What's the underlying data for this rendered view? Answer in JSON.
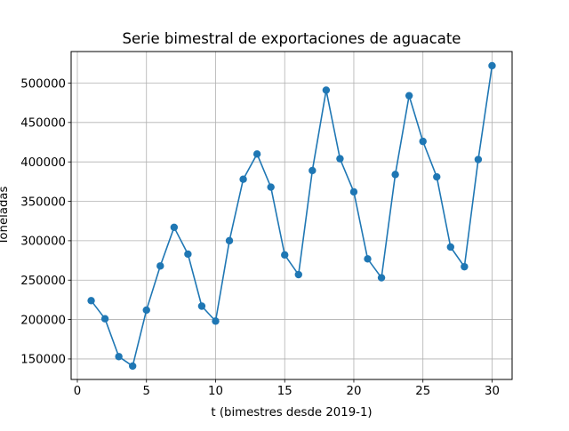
{
  "chart_data": {
    "type": "line",
    "title": "Serie bimestral de exportaciones de aguacate",
    "xlabel": "t (bimestres desde 2019-1)",
    "ylabel": "Toneladas",
    "xlim": [
      -0.45,
      31.45
    ],
    "ylim": [
      124000,
      540000
    ],
    "xticks": [
      0,
      5,
      10,
      15,
      20,
      25,
      30
    ],
    "xtick_labels": [
      "0",
      "5",
      "10",
      "15",
      "20",
      "25",
      "30"
    ],
    "yticks": [
      150000,
      200000,
      250000,
      300000,
      350000,
      400000,
      450000,
      500000
    ],
    "ytick_labels": [
      "150000",
      "200000",
      "250000",
      "300000",
      "350000",
      "400000",
      "450000",
      "500000"
    ],
    "grid": true,
    "color": "#1f77b4",
    "series": [
      {
        "x": [
          1,
          2,
          3,
          4,
          5,
          6,
          7,
          8,
          9,
          10,
          11,
          12,
          13,
          14,
          15,
          16,
          17,
          18,
          19,
          20,
          21,
          22,
          23,
          24,
          25,
          26,
          27,
          28,
          29,
          30
        ],
        "values": [
          224000,
          201000,
          153000,
          141000,
          212000,
          268000,
          317000,
          283000,
          217000,
          198000,
          300000,
          378000,
          410000,
          368000,
          282000,
          257000,
          389000,
          491000,
          404000,
          362000,
          277000,
          253000,
          384000,
          484000,
          426000,
          381000,
          292000,
          267000,
          403000,
          522000
        ]
      }
    ]
  }
}
